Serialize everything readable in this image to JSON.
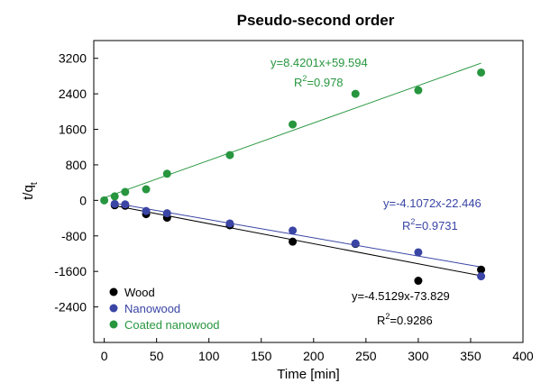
{
  "chart_data": {
    "type": "scatter",
    "title": "Pseudo-second order",
    "xlabel": "Time [min]",
    "ylabel": {
      "base": "t/q",
      "sub": "t"
    },
    "xlim": [
      -10,
      400
    ],
    "ylim": [
      -3200,
      3600
    ],
    "xticks": [
      0,
      50,
      100,
      150,
      200,
      250,
      300,
      350,
      400
    ],
    "yticks": [
      -2400,
      -1600,
      -800,
      0,
      800,
      1600,
      2400,
      3200
    ],
    "grid": false,
    "legend_position": "bottom-left",
    "series": [
      {
        "name": "Wood",
        "color": "#000000",
        "x": [
          10,
          20,
          40,
          60,
          120,
          180,
          240,
          300,
          360
        ],
        "y": [
          -110,
          -120,
          -310,
          -390,
          -560,
          -930,
          -980,
          -1810,
          -1560
        ],
        "fit": {
          "slope": -4.5129,
          "intercept": -73.829,
          "x_range": [
            10,
            360
          ]
        },
        "equation": "y=-4.5129x-73.829",
        "r2": {
          "base": "R",
          "sup": "2",
          "value": "=0.9286"
        }
      },
      {
        "name": "Nanowood",
        "color": "#3a45a5",
        "x": [
          10,
          20,
          40,
          60,
          120,
          180,
          240,
          300,
          360
        ],
        "y": [
          -80,
          -90,
          -240,
          -290,
          -520,
          -680,
          -970,
          -1170,
          -1710
        ],
        "fit": {
          "slope": -4.1072,
          "intercept": -22.446,
          "x_range": [
            10,
            360
          ]
        },
        "equation": "y=-4.1072x-22.446",
        "r2": {
          "base": "R",
          "sup": "2",
          "value": "=0.9731"
        }
      },
      {
        "name": "Coated nanowood",
        "color": "#27963f",
        "x": [
          0,
          10,
          20,
          40,
          60,
          120,
          180,
          240,
          300,
          360
        ],
        "y": [
          0,
          90,
          190,
          250,
          600,
          1020,
          1710,
          2400,
          2480,
          2880
        ],
        "fit": {
          "slope": 8.4201,
          "intercept": 59.594,
          "x_range": [
            0,
            360
          ]
        },
        "equation": "y=8.4201x+59.594",
        "r2": {
          "base": "R",
          "sup": "2",
          "value": "=0.978"
        }
      }
    ]
  }
}
